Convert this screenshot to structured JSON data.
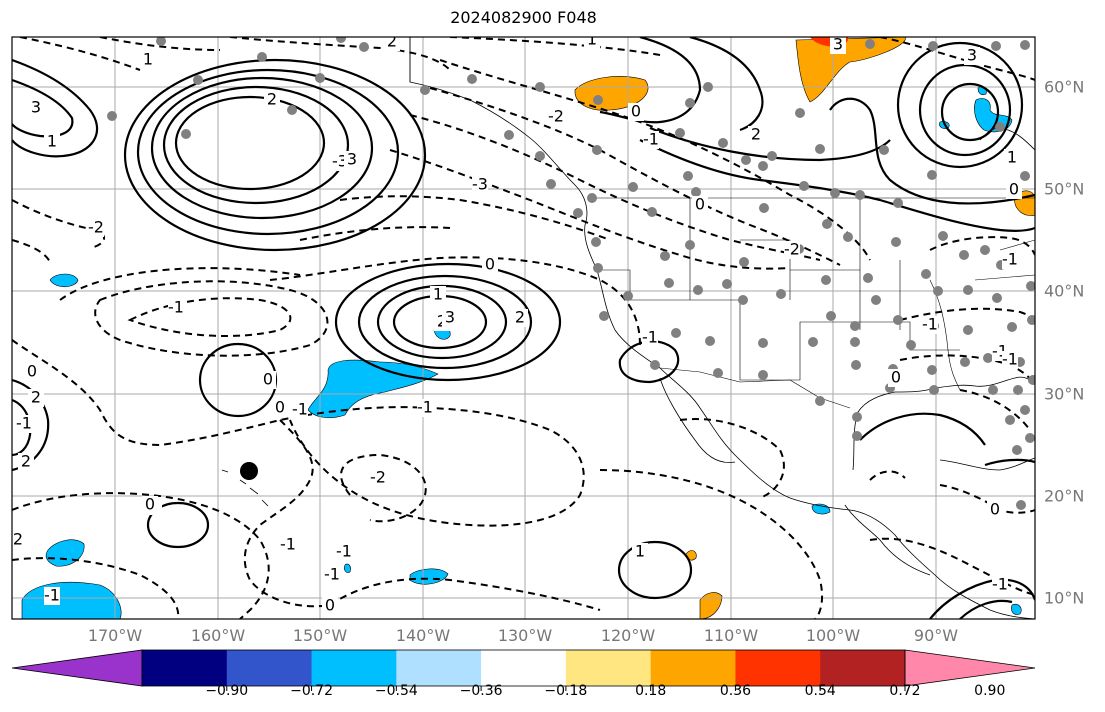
{
  "title": "2024082900 F048",
  "map": {
    "lon_labels": [
      "170°W",
      "160°W",
      "150°W",
      "140°W",
      "130°W",
      "120°W",
      "110°W",
      "100°W",
      "90°W"
    ],
    "lat_labels": [
      "60°N",
      "50°N",
      "40°N",
      "30°N",
      "20°N",
      "10°N"
    ],
    "contour_labels": [
      "1",
      "3",
      "1",
      "2",
      "1",
      "3",
      "-2",
      "-1",
      "2",
      "-3",
      "0",
      "0",
      "1",
      "2",
      "-1",
      "-1",
      "0",
      "-2",
      "-1",
      "-1",
      "2",
      "2",
      "-1",
      "-3",
      "-2",
      "-1",
      "0",
      "1",
      "2",
      "3",
      "2",
      "-1",
      "0",
      "-1",
      "0",
      "-1",
      "0",
      "-1",
      "0",
      "-1",
      "-1",
      "0",
      "-2",
      "0",
      "-1",
      "0",
      "-1",
      "0",
      "0",
      "1",
      "2",
      "3",
      "3",
      "-1"
    ],
    "marker_color": "#000000",
    "station_dot_color": "#808080"
  },
  "colorbar": {
    "colors": [
      "#9933cc",
      "#000080",
      "#3355cc",
      "#00bfff",
      "#b0e0ff",
      "#ffffff",
      "#ffe680",
      "#ffa500",
      "#ff3300",
      "#b22222",
      "#ff88aa"
    ],
    "ticks": [
      "−0.90",
      "−0.72",
      "−0.54",
      "−0.36",
      "−0.18",
      "0.18",
      "0.36",
      "0.54",
      "0.72",
      "0.90"
    ]
  }
}
